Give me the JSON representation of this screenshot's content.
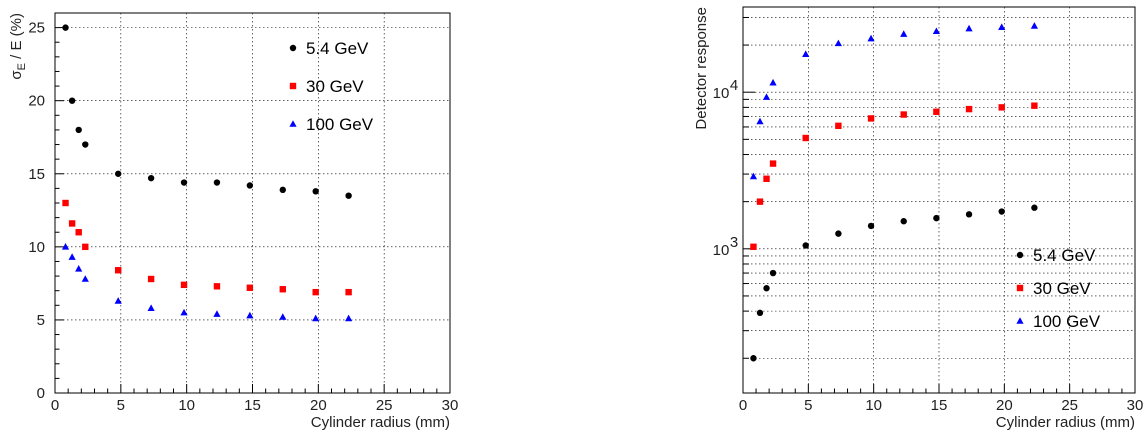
{
  "chart_data": [
    {
      "type": "scatter",
      "xlabel": "Cylinder radius (mm)",
      "ylabel_main": "σ",
      "ylabel_sub": "E",
      "ylabel_rest": " / E (%)",
      "xlim": [
        0,
        30
      ],
      "ylim": [
        0,
        26
      ],
      "yscale": "linear",
      "grid": true,
      "legend_position": "top-right",
      "x_ticks": [
        0,
        5,
        10,
        15,
        20,
        25,
        30
      ],
      "y_ticks": [
        0,
        5,
        10,
        15,
        20,
        25
      ],
      "series": [
        {
          "name": "5.4 GeV",
          "marker": "circle",
          "color": "#000000",
          "x": [
            0.8,
            1.3,
            1.8,
            2.3,
            4.8,
            7.3,
            9.8,
            12.3,
            14.8,
            17.3,
            19.8,
            22.3
          ],
          "y": [
            25.0,
            20.0,
            18.0,
            17.0,
            15.0,
            14.7,
            14.4,
            14.4,
            14.2,
            13.9,
            13.8,
            13.5
          ]
        },
        {
          "name": "30 GeV",
          "marker": "square",
          "color": "#ff0000",
          "x": [
            0.8,
            1.3,
            1.8,
            2.3,
            4.8,
            7.3,
            9.8,
            12.3,
            14.8,
            17.3,
            19.8,
            22.3
          ],
          "y": [
            13.0,
            11.6,
            11.0,
            10.0,
            8.4,
            7.8,
            7.4,
            7.3,
            7.2,
            7.1,
            6.9,
            6.9
          ]
        },
        {
          "name": "100 GeV",
          "marker": "triangle",
          "color": "#0000ff",
          "x": [
            0.8,
            1.3,
            1.8,
            2.3,
            4.8,
            7.3,
            9.8,
            12.3,
            14.8,
            17.3,
            19.8,
            22.3
          ],
          "y": [
            10.0,
            9.3,
            8.5,
            7.8,
            6.3,
            5.8,
            5.5,
            5.4,
            5.3,
            5.2,
            5.1,
            5.1
          ]
        }
      ]
    },
    {
      "type": "scatter",
      "xlabel": "Cylinder radius (mm)",
      "ylabel": "Detector response",
      "xlim": [
        0,
        30
      ],
      "ylim": [
        120,
        35000
      ],
      "yscale": "log",
      "grid": true,
      "legend_position": "bottom-right",
      "x_ticks": [
        0,
        5,
        10,
        15,
        20,
        25,
        30
      ],
      "y_ticks_labeled": [
        {
          "value": 1000,
          "base": "10",
          "exp": "3"
        },
        {
          "value": 10000,
          "base": "10",
          "exp": "4"
        }
      ],
      "series": [
        {
          "name": "5.4 GeV",
          "marker": "circle",
          "color": "#000000",
          "x": [
            0.8,
            1.3,
            1.8,
            2.3,
            4.8,
            7.3,
            9.8,
            12.3,
            14.8,
            17.3,
            19.8,
            22.3
          ],
          "y": [
            200,
            390,
            560,
            700,
            1050,
            1250,
            1400,
            1500,
            1570,
            1660,
            1730,
            1830
          ]
        },
        {
          "name": "30 GeV",
          "marker": "square",
          "color": "#ff0000",
          "x": [
            0.8,
            1.3,
            1.8,
            2.3,
            4.8,
            7.3,
            9.8,
            12.3,
            14.8,
            17.3,
            19.8,
            22.3
          ],
          "y": [
            1030,
            2000,
            2800,
            3500,
            5100,
            6100,
            6800,
            7200,
            7500,
            7800,
            8000,
            8200
          ]
        },
        {
          "name": "100 GeV",
          "marker": "triangle",
          "color": "#0000ff",
          "x": [
            0.8,
            1.3,
            1.8,
            2.3,
            4.8,
            7.3,
            9.8,
            12.3,
            14.8,
            17.3,
            19.8,
            22.3
          ],
          "y": [
            2900,
            6500,
            9300,
            11500,
            17500,
            20500,
            22000,
            23500,
            24500,
            25500,
            26000,
            26500
          ]
        }
      ]
    }
  ]
}
